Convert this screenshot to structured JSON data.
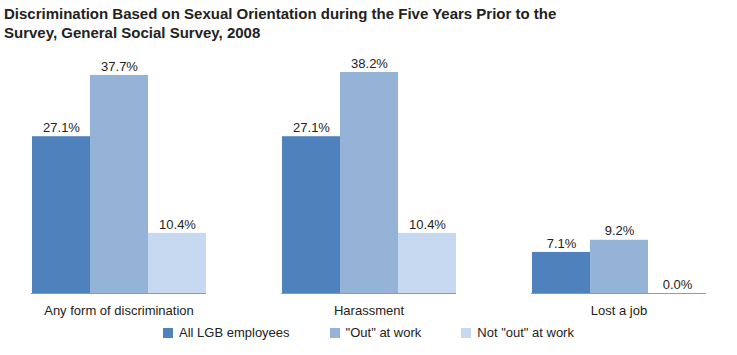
{
  "chart_data": {
    "type": "bar",
    "title": "Discrimination Based on Sexual Orientation during the Five Years Prior to the Survey, General Social Survey, 2008",
    "categories": [
      "Any form of discrimination",
      "Harassment",
      "Lost a job"
    ],
    "series": [
      {
        "name": "All LGB employees",
        "color": "#4f81bd",
        "values": [
          27.1,
          27.1,
          7.1
        ],
        "value_labels": [
          "27.1%",
          "27.1%",
          "7.1%"
        ]
      },
      {
        "name": "\"Out\" at work",
        "color": "#95b3d7",
        "values": [
          37.7,
          38.2,
          9.2
        ],
        "value_labels": [
          "37.7%",
          "38.2%",
          "9.2%"
        ]
      },
      {
        "name": "Not \"out\" at work",
        "color": "#c6d9f1",
        "values": [
          10.4,
          10.4,
          0.0
        ],
        "value_labels": [
          "10.4%",
          "10.4%",
          "0.0%"
        ]
      }
    ],
    "data_labels": true,
    "tick_labels": "x",
    "grid": false,
    "legend": "bottom"
  }
}
